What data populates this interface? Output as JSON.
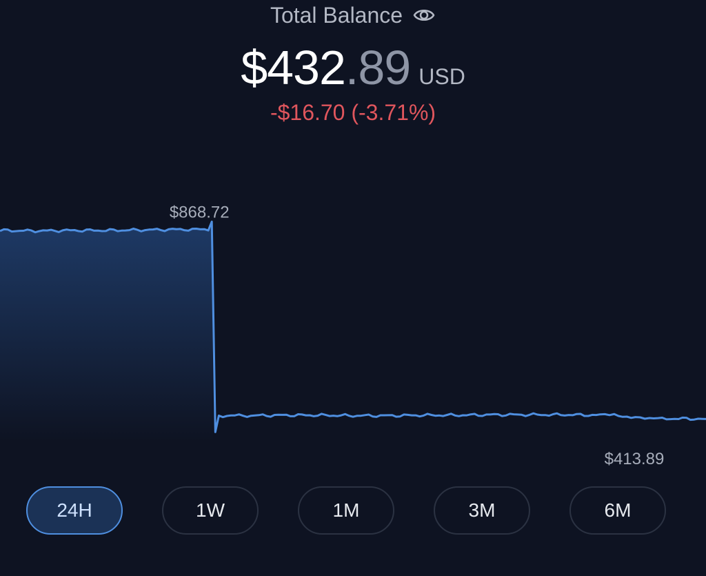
{
  "header": {
    "title": "Total Balance",
    "visibility_icon": "eye-icon"
  },
  "balance": {
    "whole": "$432",
    "decimal": ".89",
    "currency": "USD"
  },
  "change": {
    "text": "-$16.70 (-3.71%)",
    "color": "#e0565d"
  },
  "chart_data": {
    "type": "area",
    "max_label": "$868.72",
    "min_label": "$413.89",
    "ylim": [
      400,
      900
    ],
    "x": [
      0,
      5,
      10,
      15,
      20,
      25,
      29.5,
      30,
      30.5,
      31,
      35,
      40,
      45,
      50,
      55,
      60,
      65,
      70,
      75,
      80,
      85,
      87,
      90,
      92,
      95,
      100
    ],
    "values": [
      850,
      849,
      850,
      850,
      851,
      852,
      852,
      868.72,
      420,
      455,
      455,
      456,
      456,
      455,
      455,
      456,
      456,
      457,
      457,
      457,
      456,
      456,
      452,
      448,
      449,
      448
    ],
    "line_color": "#4f8fe0",
    "fill_color": "#1e3a66",
    "background": "#0e1322",
    "grid": false
  },
  "ranges": [
    {
      "label": "24H",
      "active": true
    },
    {
      "label": "1W",
      "active": false
    },
    {
      "label": "1M",
      "active": false
    },
    {
      "label": "3M",
      "active": false
    },
    {
      "label": "6M",
      "active": false
    }
  ]
}
